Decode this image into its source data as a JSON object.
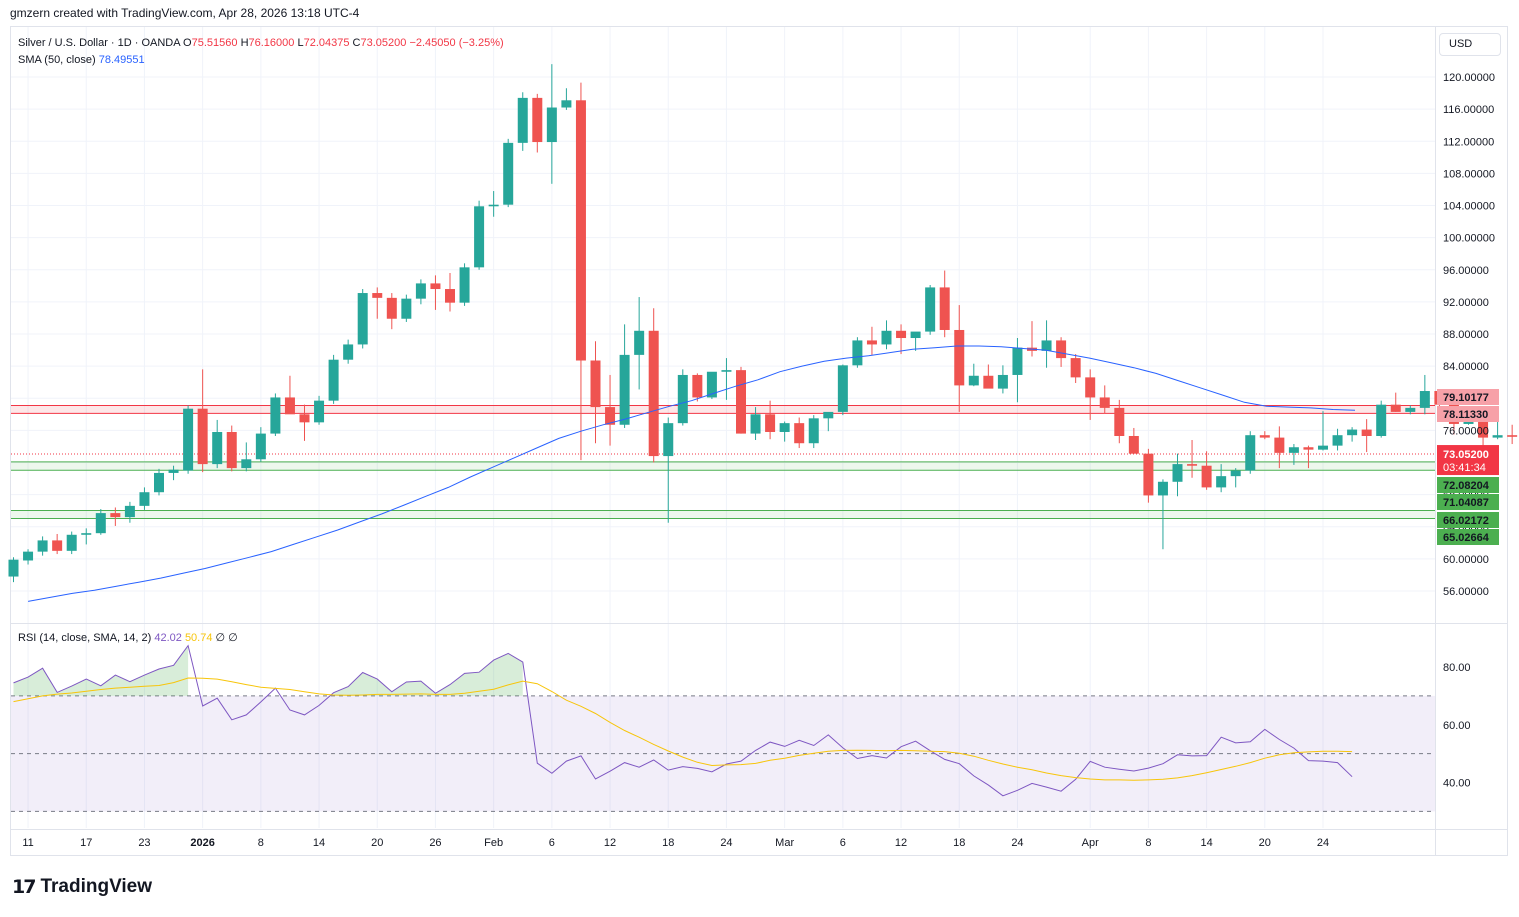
{
  "header": {
    "attribution": "gmzern created with TradingView.com, Apr 28, 2026 13:18 UTC-4"
  },
  "legend": {
    "symbol": "Silver / U.S. Dollar · 1D · OANDA",
    "o_label": "O",
    "o_value": "75.51560",
    "h_label": "H",
    "h_value": "76.16000",
    "l_label": "L",
    "l_value": "72.04375",
    "c_label": "C",
    "c_value": "73.05200",
    "change": "−2.45050 (−3.25%)",
    "sma_label": "SMA (50, close)",
    "sma_value": "78.49551"
  },
  "rsi_legend": {
    "label": "RSI (14, close, SMA, 14, 2)",
    "rsi_value": "42.02",
    "ma_value": "50.74",
    "extra": "∅ ∅"
  },
  "currency": "USD",
  "footer": {
    "logo_mark": "17",
    "logo_text": "TradingView"
  },
  "colors": {
    "up": "#26a69a",
    "down": "#ef5350",
    "sma": "#2962ff",
    "rsi": "#7e57c2",
    "rsi_ma": "#f7c50b",
    "resistance": "#f23645",
    "support": "#4caf50",
    "rsi_band": "#7e57c2"
  },
  "chart_data": {
    "type": "candlestick",
    "yaxis_ticks": [
      56,
      60,
      64,
      68,
      72,
      76,
      80,
      84,
      88,
      92,
      96,
      100,
      104,
      108,
      112,
      116,
      120
    ],
    "yaxis_labels": [
      "56.00000",
      "60.00000",
      "64.00000",
      "68.00000",
      "72.00000",
      "76.00000",
      "80.00000",
      "84.00000",
      "88.00000",
      "92.00000",
      "96.00000",
      "100.00000",
      "104.00000",
      "108.00000",
      "112.00000",
      "116.00000",
      "120.00000"
    ],
    "ylim": [
      53,
      122
    ],
    "xaxis_labels": [
      {
        "idx": 1,
        "label": "11"
      },
      {
        "idx": 5,
        "label": "17"
      },
      {
        "idx": 9,
        "label": "23"
      },
      {
        "idx": 13,
        "label": "2026"
      },
      {
        "idx": 17,
        "label": "8"
      },
      {
        "idx": 21,
        "label": "14"
      },
      {
        "idx": 25,
        "label": "20"
      },
      {
        "idx": 29,
        "label": "26"
      },
      {
        "idx": 33,
        "label": "Feb"
      },
      {
        "idx": 37,
        "label": "6"
      },
      {
        "idx": 41,
        "label": "12"
      },
      {
        "idx": 45,
        "label": "18"
      },
      {
        "idx": 49,
        "label": "24"
      },
      {
        "idx": 53,
        "label": "Mar"
      },
      {
        "idx": 57,
        "label": "6"
      },
      {
        "idx": 61,
        "label": "12"
      },
      {
        "idx": 65,
        "label": "18"
      },
      {
        "idx": 69,
        "label": "24"
      },
      {
        "idx": 74,
        "label": "Apr"
      },
      {
        "idx": 78,
        "label": "8"
      },
      {
        "idx": 82,
        "label": "14"
      },
      {
        "idx": 86,
        "label": "20"
      },
      {
        "idx": 90,
        "label": "24"
      }
    ],
    "candles": [
      [
        57.8,
        60.2,
        57.1,
        59.9
      ],
      [
        59.8,
        61.2,
        59.3,
        60.9
      ],
      [
        60.9,
        62.8,
        60.4,
        62.3
      ],
      [
        62.3,
        63.1,
        60.6,
        61.0
      ],
      [
        61.0,
        63.4,
        60.6,
        63.0
      ],
      [
        63.0,
        63.8,
        61.8,
        63.2
      ],
      [
        63.2,
        66.2,
        63.0,
        65.7
      ],
      [
        65.7,
        66.4,
        64.1,
        65.2
      ],
      [
        65.2,
        67.1,
        64.5,
        66.6
      ],
      [
        66.6,
        68.9,
        66.1,
        68.3
      ],
      [
        68.3,
        71.2,
        67.9,
        70.7
      ],
      [
        70.7,
        71.6,
        69.8,
        71.1
      ],
      [
        71.0,
        79.1,
        70.6,
        78.7
      ],
      [
        78.7,
        83.6,
        70.8,
        71.8
      ],
      [
        71.8,
        77.3,
        71.3,
        75.8
      ],
      [
        75.8,
        76.6,
        70.9,
        71.3
      ],
      [
        71.3,
        74.5,
        70.9,
        72.4
      ],
      [
        72.4,
        76.4,
        72.1,
        75.6
      ],
      [
        75.6,
        80.6,
        75.3,
        80.1
      ],
      [
        80.1,
        82.8,
        78.1,
        78.0
      ],
      [
        78.0,
        79.2,
        74.7,
        77.0
      ],
      [
        77.0,
        80.3,
        76.7,
        79.7
      ],
      [
        79.7,
        85.4,
        79.3,
        84.8
      ],
      [
        84.8,
        87.3,
        84.3,
        86.7
      ],
      [
        86.7,
        93.6,
        86.2,
        93.1
      ],
      [
        93.1,
        93.8,
        89.9,
        92.5
      ],
      [
        92.5,
        93.1,
        88.6,
        89.9
      ],
      [
        89.9,
        92.9,
        89.5,
        92.4
      ],
      [
        92.4,
        94.8,
        91.7,
        94.3
      ],
      [
        94.3,
        95.3,
        91.0,
        93.6
      ],
      [
        93.6,
        95.6,
        90.8,
        91.9
      ],
      [
        91.9,
        96.8,
        91.5,
        96.3
      ],
      [
        96.3,
        104.6,
        96.0,
        103.9
      ],
      [
        103.9,
        105.8,
        102.6,
        104.1
      ],
      [
        104.1,
        112.3,
        103.8,
        111.8
      ],
      [
        111.8,
        118.1,
        110.8,
        117.4
      ],
      [
        117.4,
        117.9,
        110.6,
        111.9
      ],
      [
        111.9,
        121.6,
        106.7,
        116.2
      ],
      [
        116.2,
        118.6,
        115.9,
        117.1
      ],
      [
        117.1,
        119.3,
        72.3,
        84.7
      ],
      [
        84.7,
        87.1,
        74.4,
        78.9
      ],
      [
        78.9,
        82.9,
        74.1,
        76.7
      ],
      [
        76.7,
        89.2,
        76.3,
        85.4
      ],
      [
        85.4,
        92.6,
        81.1,
        88.4
      ],
      [
        88.4,
        91.2,
        72.0,
        72.8
      ],
      [
        72.8,
        77.6,
        64.5,
        76.9
      ],
      [
        76.9,
        83.6,
        76.6,
        82.9
      ],
      [
        82.9,
        83.1,
        79.6,
        80.1
      ],
      [
        80.1,
        83.2,
        79.9,
        83.3
      ],
      [
        83.3,
        85.0,
        79.8,
        83.5
      ],
      [
        83.5,
        83.9,
        75.6,
        75.6
      ],
      [
        75.6,
        78.9,
        74.8,
        78.0
      ],
      [
        78.0,
        79.7,
        74.9,
        75.8
      ],
      [
        75.8,
        77.1,
        74.6,
        76.9
      ],
      [
        76.9,
        77.6,
        73.8,
        74.4
      ],
      [
        74.4,
        77.9,
        73.8,
        77.5
      ],
      [
        77.5,
        78.1,
        75.9,
        78.3
      ],
      [
        78.3,
        84.2,
        77.9,
        84.1
      ],
      [
        84.1,
        87.6,
        83.8,
        87.2
      ],
      [
        87.2,
        88.9,
        85.4,
        86.7
      ],
      [
        86.7,
        89.7,
        86.1,
        88.4
      ],
      [
        88.4,
        89.2,
        85.5,
        87.5
      ],
      [
        87.5,
        87.8,
        85.9,
        88.3
      ],
      [
        88.3,
        94.1,
        87.9,
        93.8
      ],
      [
        93.8,
        95.9,
        87.6,
        88.5
      ],
      [
        88.5,
        91.6,
        78.3,
        81.6
      ],
      [
        81.6,
        84.3,
        81.5,
        82.8
      ],
      [
        82.8,
        84.2,
        81.6,
        81.2
      ],
      [
        81.2,
        84.1,
        80.6,
        82.9
      ],
      [
        82.9,
        87.5,
        79.5,
        86.3
      ],
      [
        86.3,
        89.6,
        85.2,
        85.9
      ],
      [
        85.9,
        89.7,
        83.8,
        87.2
      ],
      [
        87.2,
        87.6,
        83.9,
        85.0
      ],
      [
        85.0,
        85.5,
        81.9,
        82.6
      ],
      [
        82.6,
        83.6,
        77.3,
        80.1
      ],
      [
        80.1,
        81.6,
        78.1,
        78.8
      ],
      [
        78.8,
        79.8,
        74.4,
        75.3
      ],
      [
        75.3,
        76.3,
        73.4,
        73.1
      ],
      [
        73.1,
        73.7,
        67.0,
        67.9
      ],
      [
        67.9,
        69.9,
        61.2,
        69.6
      ],
      [
        69.6,
        73.1,
        67.8,
        71.8
      ],
      [
        71.8,
        74.8,
        70.1,
        71.6
      ],
      [
        71.6,
        73.4,
        68.6,
        68.9
      ],
      [
        68.9,
        71.8,
        68.3,
        70.3
      ],
      [
        70.3,
        71.3,
        68.9,
        71.0
      ],
      [
        71.0,
        75.9,
        70.6,
        75.4
      ],
      [
        75.4,
        75.9,
        74.9,
        75.1
      ],
      [
        75.1,
        76.5,
        71.3,
        73.2
      ],
      [
        73.2,
        74.3,
        71.7,
        73.9
      ],
      [
        73.9,
        74.1,
        71.3,
        73.6
      ],
      [
        73.6,
        78.4,
        73.5,
        74.1
      ],
      [
        74.1,
        76.2,
        73.5,
        75.4
      ],
      [
        75.4,
        76.4,
        74.6,
        76.1
      ],
      [
        76.1,
        77.4,
        73.3,
        75.3
      ],
      [
        75.3,
        79.7,
        75.1,
        79.2
      ],
      [
        79.2,
        80.7,
        78.3,
        78.3
      ],
      [
        78.3,
        79.1,
        78.0,
        78.8
      ],
      [
        78.8,
        82.9,
        78.0,
        80.9
      ],
      [
        80.9,
        81.0,
        78.0,
        79.2
      ],
      [
        79.2,
        79.4,
        75.5,
        76.8
      ],
      [
        76.8,
        77.8,
        76.7,
        77.1
      ],
      [
        77.1,
        78.4,
        74.1,
        75.1
      ],
      [
        75.1,
        77.5,
        74.9,
        75.4
      ],
      [
        75.4,
        76.7,
        74.3,
        75.2
      ],
      [
        75.5,
        76.2,
        72.0,
        73.1
      ]
    ],
    "sma50": [
      54.7,
      55.2,
      55.7,
      56.1,
      56.6,
      57.1,
      57.6,
      58.2,
      58.8,
      59.5,
      60.2,
      60.9,
      61.8,
      62.7,
      63.6,
      64.6,
      65.6,
      66.7,
      67.8,
      68.9,
      70.2,
      71.4,
      72.6,
      73.8,
      75.0,
      75.9,
      76.7,
      77.4,
      78.2,
      79.0,
      79.7,
      80.6,
      81.5,
      82.3,
      83.3,
      84.0,
      84.6,
      85.0,
      85.3,
      85.7,
      86.1,
      86.3,
      86.5,
      86.5,
      86.4,
      86.2,
      86.0,
      85.5,
      85.0,
      84.4,
      83.8,
      83.1,
      82.2,
      81.3,
      80.4,
      79.5,
      79.0,
      78.9,
      78.8,
      78.6,
      78.5
    ],
    "sma50_start": 1,
    "levels": {
      "resistance": [
        79.10177,
        78.1133
      ],
      "support_upper": [
        72.08204,
        71.04087
      ],
      "support_lower": [
        66.02172,
        65.02664
      ]
    },
    "level_labels": [
      "79.10177",
      "78.11330",
      "72.08204",
      "71.04087",
      "66.02172",
      "65.02664"
    ],
    "last_price_label": "73.05200",
    "countdown": "03:41:34",
    "last_price": 73.052,
    "rsi": {
      "ylim": [
        28,
        86
      ],
      "ticks": [
        40,
        60,
        80
      ],
      "tick_labels": [
        "40.00",
        "60.00",
        "80.00"
      ],
      "bands": [
        30,
        50,
        70
      ],
      "rsi": [
        74.5,
        76.5,
        79.6,
        71.2,
        73.4,
        75.8,
        73.5,
        77.2,
        74.9,
        77.2,
        79.3,
        80.6,
        87.4,
        66.5,
        69.2,
        61.7,
        63.4,
        67.9,
        72.7,
        65.1,
        63.4,
        66.7,
        71.1,
        73.2,
        78.1,
        75.8,
        71.4,
        74.8,
        75.1,
        70.9,
        73.9,
        77.8,
        78.2,
        82.4,
        84.7,
        81.7,
        46.7,
        43.2,
        47.4,
        49.2,
        41.2,
        43.9,
        46.9,
        45.3,
        47.8,
        44.3,
        45.5,
        44.9,
        43.7,
        46.4,
        47.4,
        51.1,
        54.0,
        52.5,
        54.6,
        52.8,
        56.5,
        52.0,
        48.3,
        49.3,
        48.5,
        52.4,
        54.3,
        51.0,
        48.0,
        46.5,
        42.3,
        39.1,
        35.4,
        37.3,
        39.7,
        38.4,
        37.0,
        41.1,
        47.3,
        45.3,
        44.6,
        44.0,
        45.0,
        46.5,
        49.6,
        49.2,
        49.3,
        55.7,
        53.7,
        54.1,
        58.4,
        54.9,
        51.9,
        47.6,
        47.4,
        46.9,
        42.0
      ],
      "ma": [
        68.0,
        69.0,
        70.0,
        70.6,
        71.0,
        71.6,
        72.2,
        72.7,
        73.0,
        73.3,
        73.6,
        74.6,
        76.2,
        76.1,
        75.8,
        74.9,
        73.9,
        73.0,
        72.6,
        72.2,
        71.4,
        70.7,
        70.3,
        70.2,
        70.3,
        70.5,
        70.5,
        70.6,
        70.7,
        70.5,
        70.5,
        70.9,
        71.6,
        72.3,
        73.8,
        75.1,
        74.2,
        71.5,
        68.5,
        66.4,
        63.9,
        60.8,
        58.0,
        55.7,
        53.2,
        50.9,
        48.8,
        47.0,
        45.9,
        46.1,
        46.2,
        46.6,
        47.7,
        48.4,
        49.4,
        50.1,
        50.8,
        51.1,
        51.2,
        51.1,
        51.0,
        51.1,
        51.0,
        50.8,
        50.7,
        50.1,
        49.1,
        47.7,
        46.4,
        45.3,
        44.4,
        43.3,
        42.4,
        41.7,
        41.2,
        40.9,
        40.9,
        40.8,
        40.9,
        41.1,
        41.6,
        42.4,
        43.4,
        44.5,
        45.6,
        46.9,
        48.4,
        49.6,
        50.3,
        50.6,
        50.8,
        50.8,
        50.7
      ]
    }
  }
}
